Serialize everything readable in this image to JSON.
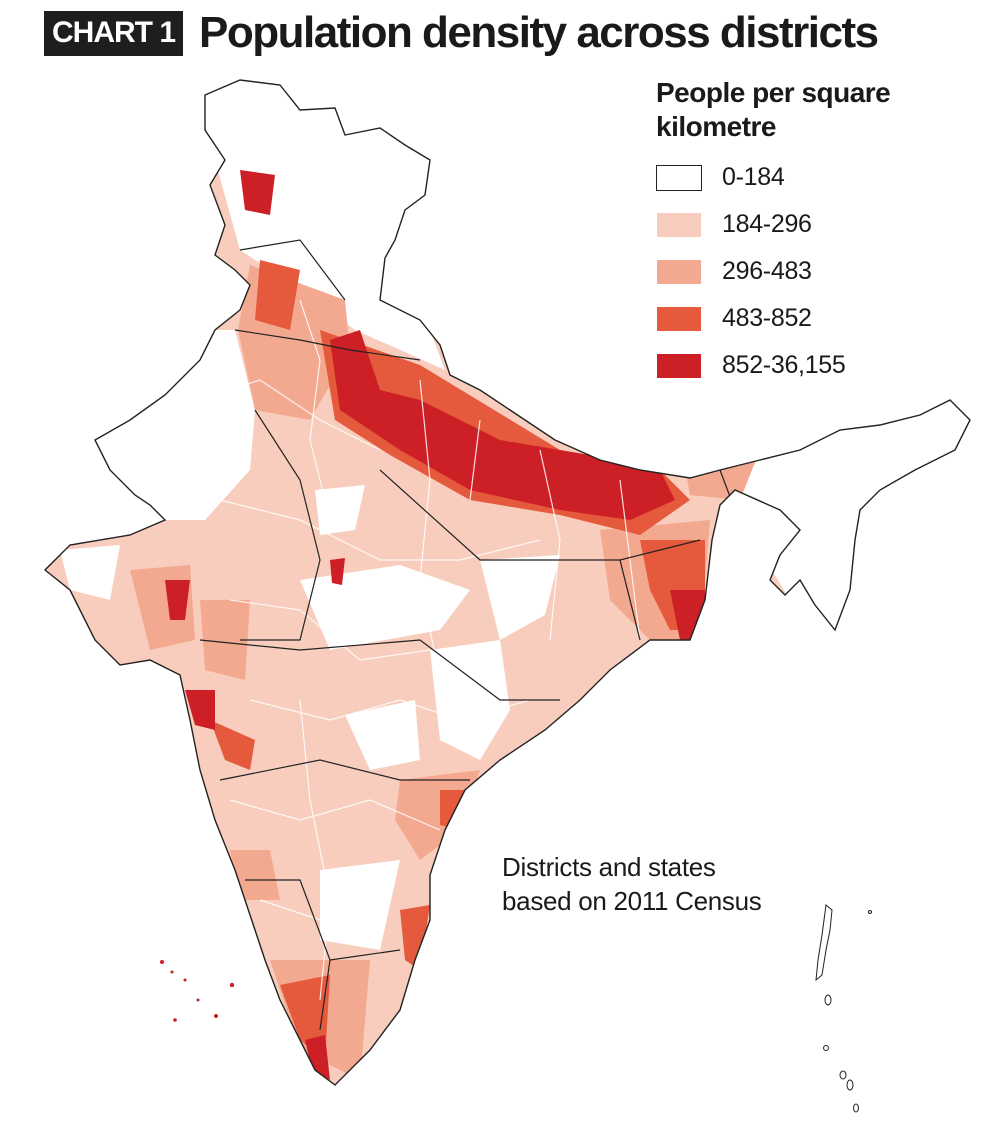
{
  "header": {
    "tag": "CHART 1",
    "title": "Population density across districts"
  },
  "legend": {
    "title": "People per square kilometre",
    "items": [
      {
        "label": "0-184",
        "color": "#ffffff"
      },
      {
        "label": "184-296",
        "color": "#f8cdbd"
      },
      {
        "label": "296-483",
        "color": "#f3a98f"
      },
      {
        "label": "483-852",
        "color": "#e55a3c"
      },
      {
        "label": "852-36,155",
        "color": "#cc1f26"
      }
    ]
  },
  "note": "Districts and states\nbased on 2011 Census",
  "map": {
    "region": "India",
    "outline_color": "#222222"
  }
}
